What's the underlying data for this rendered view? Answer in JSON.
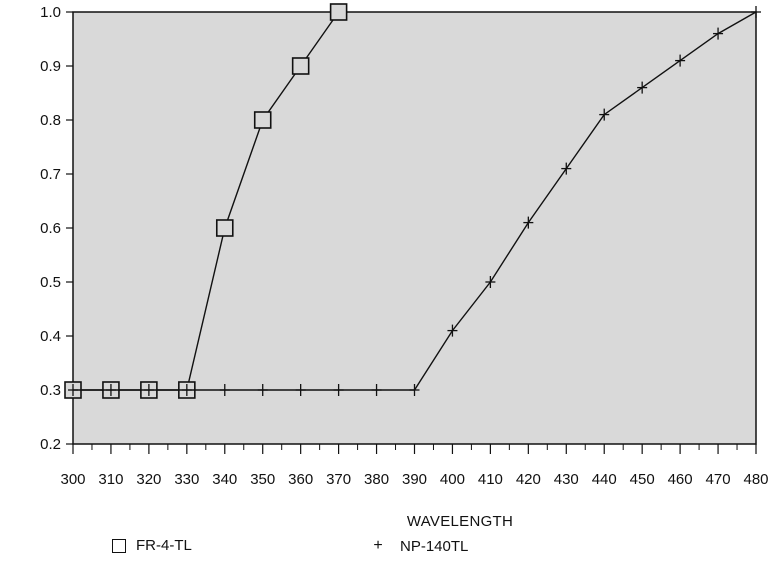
{
  "chart_data": {
    "type": "line",
    "xlabel": "WAVELENGTH",
    "ylabel": "",
    "xlim": [
      300,
      480
    ],
    "ylim": [
      0.2,
      1.0
    ],
    "xticks": [
      "300",
      "310",
      "320",
      "330",
      "340",
      "350",
      "360",
      "370",
      "380",
      "390",
      "400",
      "410",
      "420",
      "430",
      "440",
      "450",
      "460",
      "470",
      "480"
    ],
    "yticks": [
      "0.2",
      "0.3",
      "0.4",
      "0.5",
      "0.6",
      "0.7",
      "0.8",
      "0.9",
      "1.0"
    ],
    "background": "#d9d9d9",
    "grid": false,
    "legend_position": "bottom",
    "series": [
      {
        "name": "FR-4-TL",
        "marker": "square",
        "x": [
          300,
          310,
          320,
          330,
          340,
          350,
          360,
          370
        ],
        "y": [
          0.3,
          0.3,
          0.3,
          0.3,
          0.6,
          0.8,
          0.9,
          1.0
        ]
      },
      {
        "name": "NP-140TL",
        "marker": "plus",
        "x": [
          300,
          310,
          320,
          330,
          340,
          350,
          360,
          370,
          380,
          390,
          400,
          410,
          420,
          430,
          440,
          450,
          460,
          470,
          480
        ],
        "y": [
          0.3,
          0.3,
          0.3,
          0.3,
          0.3,
          0.3,
          0.3,
          0.3,
          0.3,
          0.3,
          0.41,
          0.5,
          0.61,
          0.71,
          0.81,
          0.86,
          0.91,
          0.96,
          1.0
        ]
      }
    ]
  }
}
